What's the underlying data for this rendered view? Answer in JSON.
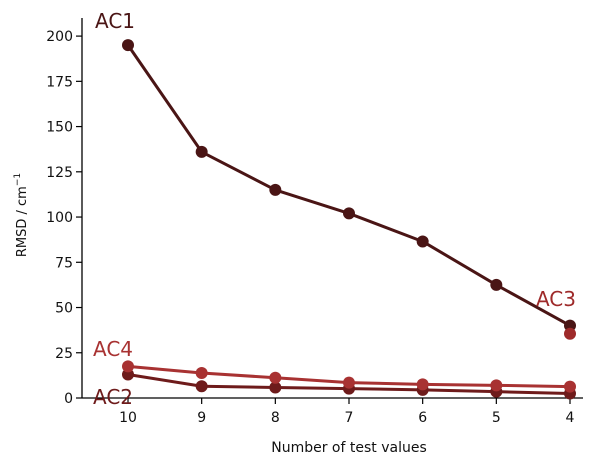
{
  "chart_data": {
    "type": "line",
    "title": "",
    "xlabel": "Number of test values",
    "ylabel": "RMSD / cm",
    "ylabel_superscript": "−1",
    "x": [
      "10",
      "9",
      "8",
      "7",
      "6",
      "5",
      "4"
    ],
    "ylim": [
      0,
      210
    ],
    "yticks": [
      0,
      25,
      50,
      75,
      100,
      125,
      150,
      175,
      200
    ],
    "grid": false,
    "series": [
      {
        "name": "AC1",
        "color": "#4a1515",
        "values": [
          195,
          136,
          115,
          102,
          86.5,
          62.5,
          40
        ]
      },
      {
        "name": "AC2",
        "color": "#6e1b1b",
        "values": [
          13,
          6.5,
          5.8,
          5.2,
          4.5,
          3.5,
          2.5
        ]
      },
      {
        "name": "AC3",
        "color": "#9e2a2a",
        "values": [
          null,
          null,
          null,
          null,
          null,
          null,
          35.5
        ]
      },
      {
        "name": "AC4",
        "color": "#a83232",
        "values": [
          17.5,
          13.8,
          11.2,
          8.5,
          7.5,
          7,
          6.3
        ]
      }
    ]
  }
}
